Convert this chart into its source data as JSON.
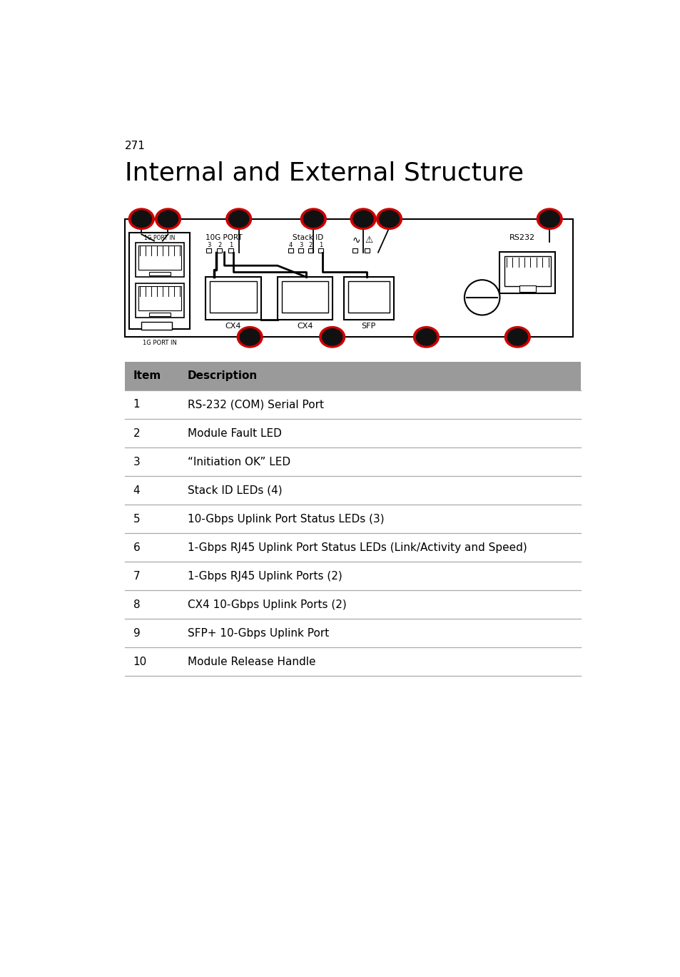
{
  "page_number": "271",
  "title": "Internal and External Structure",
  "title_fontsize": 26,
  "page_num_fontsize": 11,
  "table_header": [
    "Item",
    "Description"
  ],
  "table_rows": [
    [
      "1",
      "RS-232 (COM) Serial Port"
    ],
    [
      "2",
      "Module Fault LED"
    ],
    [
      "3",
      "“Initiation OK” LED"
    ],
    [
      "4",
      "Stack ID LEDs (4)"
    ],
    [
      "5",
      "10-Gbps Uplink Port Status LEDs (3)"
    ],
    [
      "6",
      "1-Gbps RJ45 Uplink Port Status LEDs (Link/Activity and Speed)"
    ],
    [
      "7",
      "1-Gbps RJ45 Uplink Ports (2)"
    ],
    [
      "8",
      "CX4 10-Gbps Uplink Ports (2)"
    ],
    [
      "9",
      "SFP+ 10-Gbps Uplink Port"
    ],
    [
      "10",
      "Module Release Handle"
    ]
  ],
  "bg_color": "#ffffff",
  "table_header_bg": "#9a9a9a",
  "table_line_color": "#aaaaaa",
  "dot_fill_color": "#111111",
  "dot_edge_color": "#cc0000"
}
